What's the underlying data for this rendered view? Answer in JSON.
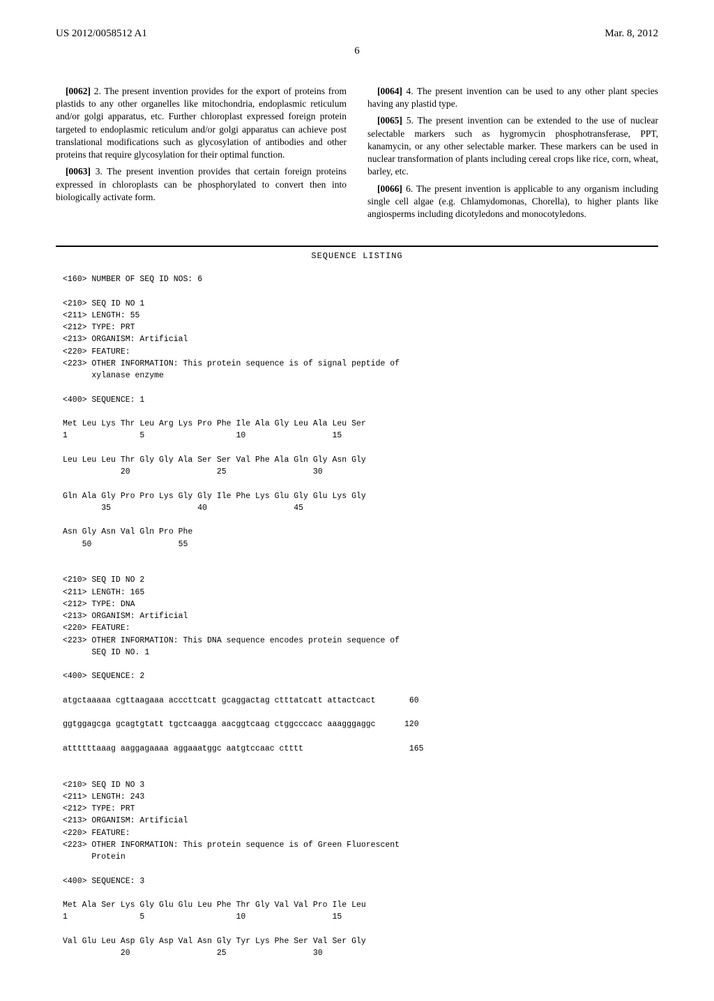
{
  "header": {
    "pub_number": "US 2012/0058512 A1",
    "pub_date": "Mar. 8, 2012"
  },
  "page_number": "6",
  "col_left": {
    "p62": {
      "num": "[0062]",
      "text": "2. The present invention provides for the export of proteins from plastids to any other organelles like mitochondria, endoplasmic reticulum and/or golgi apparatus, etc. Further chloroplast expressed foreign protein targeted to endoplasmic reticulum and/or golgi apparatus can achieve post translational modifications such as glycosylation of antibodies and other proteins that require glycosylation for their optimal function."
    },
    "p63": {
      "num": "[0063]",
      "text": "3. The present invention provides that certain foreign proteins expressed in chloroplasts can be phosphorylated to convert then into biologically activate form."
    }
  },
  "col_right": {
    "p64": {
      "num": "[0064]",
      "text": "4. The present invention can be used to any other plant species having any plastid type."
    },
    "p65": {
      "num": "[0065]",
      "text": "5. The present invention can be extended to the use of nuclear selectable markers such as hygromycin phosphotransferase, PPT, kanamycin, or any other selectable marker. These markers can be used in nuclear transformation of plants including cereal crops like rice, corn, wheat, barley, etc."
    },
    "p66": {
      "num": "[0066]",
      "text": "6. The present invention is applicable to any organism including single cell algae (e.g. Chlamydomonas, Chorella), to higher plants like angiosperms including dicotyledons and monocotyledons."
    }
  },
  "seq_heading": "SEQUENCE LISTING",
  "seq_text": "<160> NUMBER OF SEQ ID NOS: 6\n\n<210> SEQ ID NO 1\n<211> LENGTH: 55\n<212> TYPE: PRT\n<213> ORGANISM: Artificial\n<220> FEATURE:\n<223> OTHER INFORMATION: This protein sequence is of signal peptide of\n      xylanase enzyme\n\n<400> SEQUENCE: 1\n\nMet Leu Lys Thr Leu Arg Lys Pro Phe Ile Ala Gly Leu Ala Leu Ser\n1               5                   10                  15\n\nLeu Leu Leu Thr Gly Gly Ala Ser Ser Val Phe Ala Gln Gly Asn Gly\n            20                  25                  30\n\nGln Ala Gly Pro Pro Lys Gly Gly Ile Phe Lys Glu Gly Glu Lys Gly\n        35                  40                  45\n\nAsn Gly Asn Val Gln Pro Phe\n    50                  55\n\n\n<210> SEQ ID NO 2\n<211> LENGTH: 165\n<212> TYPE: DNA\n<213> ORGANISM: Artificial\n<220> FEATURE:\n<223> OTHER INFORMATION: This DNA sequence encodes protein sequence of\n      SEQ ID NO. 1\n\n<400> SEQUENCE: 2\n\natgctaaaaa cgttaagaaa acccttcatt gcaggactag ctttatcatt attactcact       60\n\nggtggagcga gcagtgtatt tgctcaagga aacggtcaag ctggcccacc aaagggaggc      120\n\nattttttaaag aaggagaaaa aggaaatggc aatgtccaac ctttt                      165\n\n\n<210> SEQ ID NO 3\n<211> LENGTH: 243\n<212> TYPE: PRT\n<213> ORGANISM: Artificial\n<220> FEATURE:\n<223> OTHER INFORMATION: This protein sequence is of Green Fluorescent\n      Protein\n\n<400> SEQUENCE: 3\n\nMet Ala Ser Lys Gly Glu Glu Leu Phe Thr Gly Val Val Pro Ile Leu\n1               5                   10                  15\n\nVal Glu Leu Asp Gly Asp Val Asn Gly Tyr Lys Phe Ser Val Ser Gly\n            20                  25                  30"
}
